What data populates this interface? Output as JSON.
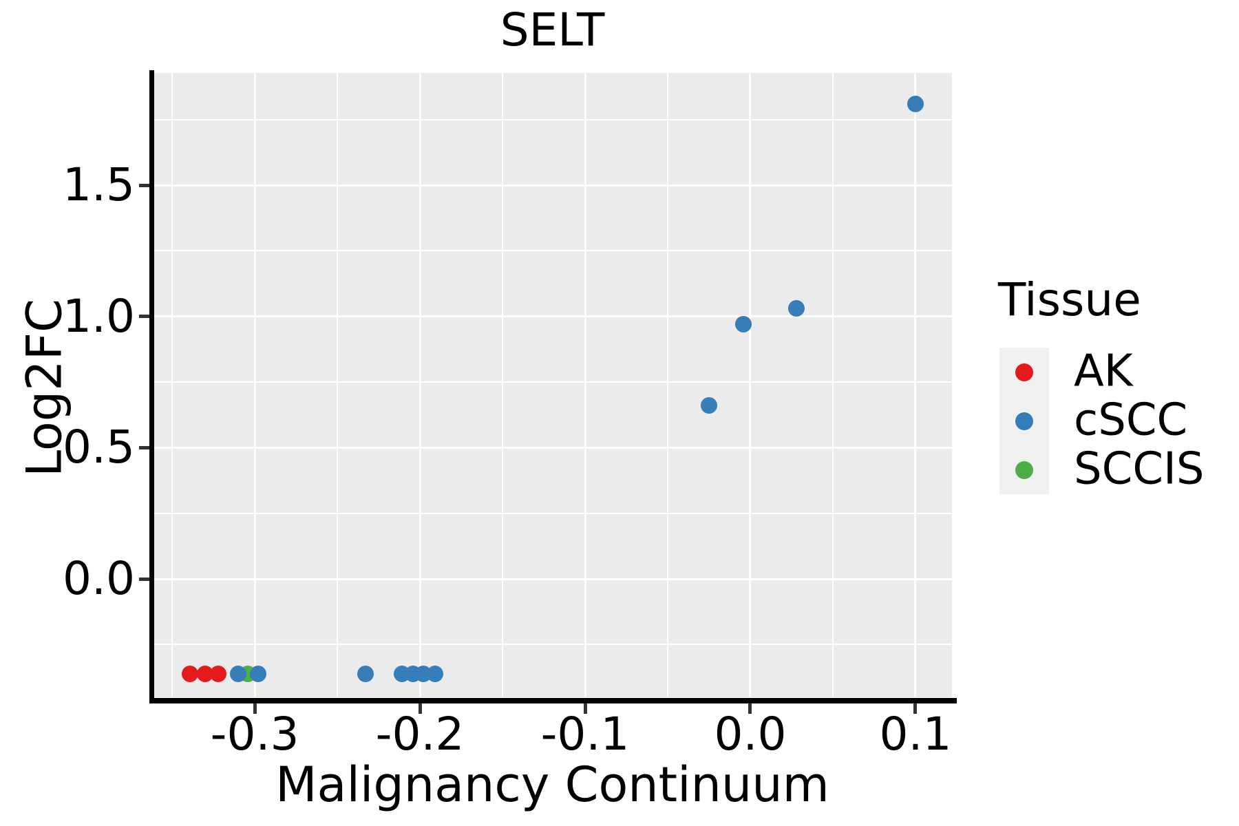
{
  "title": "SELT",
  "chart_data": {
    "type": "scatter",
    "title": "SELT",
    "xlabel": "Malignancy Continuum",
    "ylabel": "Log2FC",
    "xlim": [
      -0.3617,
      0.1221
    ],
    "ylim": [
      -0.451,
      1.928
    ],
    "grid": "major+minor",
    "legend_position": "right",
    "x_major_ticks": [
      {
        "value": -0.3,
        "label": "-0.3"
      },
      {
        "value": -0.2,
        "label": "-0.2"
      },
      {
        "value": -0.1,
        "label": "-0.1"
      },
      {
        "value": 0.0,
        "label": "0.0"
      },
      {
        "value": 0.1,
        "label": "0.1"
      }
    ],
    "y_major_ticks": [
      {
        "value": 0.0,
        "label": "0.0"
      },
      {
        "value": 0.5,
        "label": "0.5"
      },
      {
        "value": 1.0,
        "label": "1.0"
      },
      {
        "value": 1.5,
        "label": "1.5"
      }
    ],
    "x_minor_ticks": [
      -0.35,
      -0.25,
      -0.15,
      -0.05,
      0.05
    ],
    "y_minor_ticks": [
      -0.25,
      0.25,
      0.75,
      1.25,
      1.75
    ],
    "series": [
      {
        "name": "AK",
        "color": "#E41A1C",
        "points": [
          [
            -0.339,
            -0.363
          ],
          [
            -0.33,
            -0.363
          ],
          [
            -0.322,
            -0.363
          ]
        ]
      },
      {
        "name": "SCCIS",
        "color": "#4DAF4A",
        "points": [
          [
            -0.304,
            -0.363
          ]
        ]
      },
      {
        "name": "cSCC",
        "color": "#377EB8",
        "points": [
          [
            -0.31,
            -0.363
          ],
          [
            -0.298,
            -0.363
          ],
          [
            -0.233,
            -0.363
          ],
          [
            -0.211,
            -0.363
          ],
          [
            -0.204,
            -0.363
          ],
          [
            -0.198,
            -0.363
          ],
          [
            -0.191,
            -0.363
          ],
          [
            -0.025,
            0.66
          ],
          [
            -0.004,
            0.97
          ],
          [
            0.028,
            1.03
          ],
          [
            0.1,
            1.81
          ]
        ]
      }
    ],
    "legend": {
      "title": "Tissue",
      "entries": [
        {
          "label": "AK",
          "color": "#E41A1C"
        },
        {
          "label": "cSCC",
          "color": "#377EB8"
        },
        {
          "label": "SCCIS",
          "color": "#4DAF4A"
        }
      ]
    }
  },
  "colors": {
    "panel_bg": "#EBEBEB",
    "gridline": "#FFFFFF",
    "axis_line": "#000000",
    "tick_mark": "#333333",
    "legend_key_bg": "#F0F0F0",
    "text": "#000000"
  }
}
